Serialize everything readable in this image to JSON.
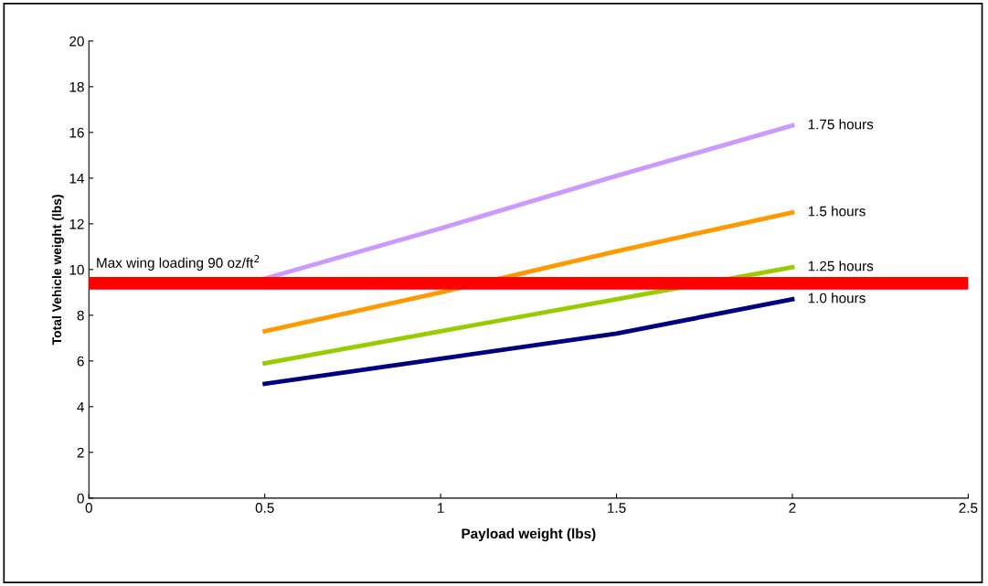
{
  "chart_data": {
    "type": "line",
    "xlabel": "Payload weight (lbs)",
    "ylabel": "Total Vehicle weight (lbs)",
    "x": [
      0.5,
      1,
      1.5,
      2
    ],
    "series": [
      {
        "name": "1.75 hours",
        "color": "#cc99ff",
        "values": [
          9.6,
          11.8,
          14.1,
          16.3
        ]
      },
      {
        "name": "1.5 hours",
        "color": "#ff9900",
        "values": [
          7.3,
          9.0,
          10.8,
          12.5
        ]
      },
      {
        "name": "1.25 hours",
        "color": "#99cc00",
        "values": [
          5.9,
          7.3,
          8.7,
          10.1
        ]
      },
      {
        "name": "1.0 hours",
        "color": "#000080",
        "values": [
          5.0,
          6.1,
          7.2,
          8.7
        ]
      }
    ],
    "xlim": [
      0,
      2.5
    ],
    "xticks": [
      0,
      0.5,
      1,
      1.5,
      2,
      2.5
    ],
    "ylim": [
      0,
      20
    ],
    "yticks": [
      0,
      2,
      4,
      6,
      8,
      10,
      12,
      14,
      16,
      18,
      20
    ],
    "ref_lines": [
      {
        "axis": "y",
        "value": 9.4,
        "label": "Max wing loading 90 oz/ft$^{2}$",
        "color": "#ff0000"
      }
    ],
    "grid": false,
    "legend": false,
    "marker": "none",
    "line_style": "solid"
  }
}
